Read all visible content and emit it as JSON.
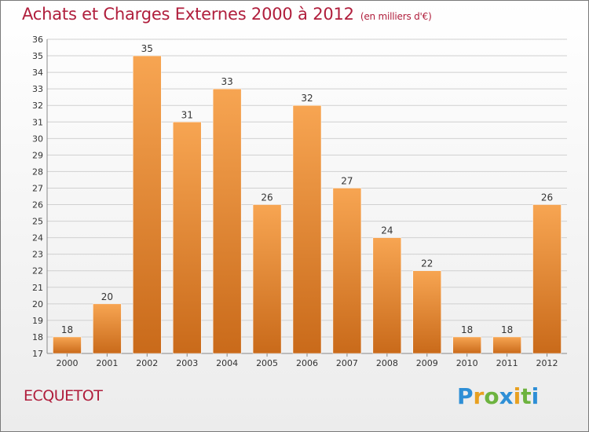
{
  "title": "Achats et Charges Externes 2000 à 2012",
  "unit_label": "(en milliers d'€)",
  "commune": "ECQUETOT",
  "logo": {
    "text": "Proxiti",
    "letters": [
      {
        "ch": "P",
        "color": "#2e8fd6"
      },
      {
        "ch": "r",
        "color": "#e8a020"
      },
      {
        "ch": "o",
        "color": "#6db33f"
      },
      {
        "ch": "x",
        "color": "#2e8fd6"
      },
      {
        "ch": "i",
        "color": "#e8a020"
      },
      {
        "ch": "t",
        "color": "#6db33f"
      },
      {
        "ch": "i",
        "color": "#2e8fd6"
      }
    ]
  },
  "colors": {
    "bar_top": "#f7a552",
    "bar_bottom": "#c96a1a",
    "title": "#b01e3c",
    "axis_text": "#333333"
  },
  "chart_data": {
    "type": "bar",
    "categories": [
      "2000",
      "2001",
      "2002",
      "2003",
      "2004",
      "2005",
      "2006",
      "2007",
      "2008",
      "2009",
      "2010",
      "2011",
      "2012"
    ],
    "values": [
      18,
      20,
      35,
      31,
      33,
      26,
      32,
      27,
      24,
      22,
      18,
      18,
      26
    ],
    "ylim": [
      17,
      36
    ],
    "yticks": [
      17,
      18,
      19,
      20,
      21,
      22,
      23,
      24,
      25,
      26,
      27,
      28,
      29,
      30,
      31,
      32,
      33,
      34,
      35,
      36
    ],
    "grid": true,
    "title": "Achats et Charges Externes 2000 à 2012",
    "xlabel": "",
    "ylabel": ""
  }
}
